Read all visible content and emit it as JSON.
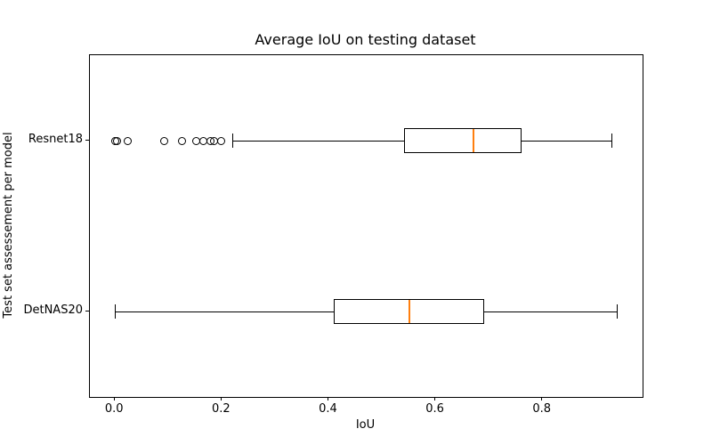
{
  "chart_data": {
    "type": "boxplot",
    "orientation": "horizontal",
    "title": "Average IoU on testing dataset",
    "xlabel": "IoU",
    "ylabel": "Test set assessement per model",
    "xlim": [
      -0.047,
      0.987
    ],
    "ylim": [
      0.5,
      2.5
    ],
    "x_ticks": [
      0.0,
      0.2,
      0.4,
      0.6,
      0.8
    ],
    "x_tick_labels": [
      "0.0",
      "0.2",
      "0.4",
      "0.6",
      "0.8"
    ],
    "grid": false,
    "legend": false,
    "colors": {
      "median": "#ff7f0e",
      "box_edge": "#000000",
      "background": "#ffffff"
    },
    "series": [
      {
        "label": "Resnet18",
        "position": 2,
        "whisker_low": 0.22,
        "q1": 0.54,
        "median": 0.67,
        "q3": 0.76,
        "whisker_high": 0.93,
        "outliers": [
          0.0,
          0.003,
          0.023,
          0.092,
          0.126,
          0.152,
          0.165,
          0.179,
          0.186,
          0.199
        ]
      },
      {
        "label": "DetNAS20",
        "position": 1,
        "whisker_low": 0.0,
        "q1": 0.41,
        "median": 0.55,
        "q3": 0.69,
        "whisker_high": 0.94,
        "outliers": []
      }
    ]
  }
}
